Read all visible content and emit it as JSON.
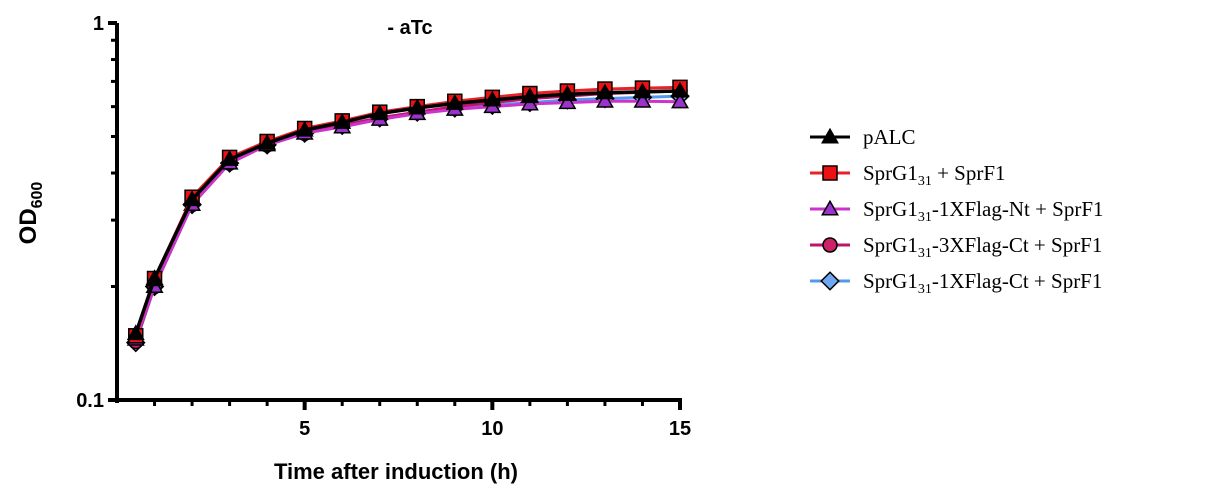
{
  "chart_data": {
    "type": "line",
    "title": "- aTc",
    "xlabel": "Time after induction (h)",
    "ylabel": "OD",
    "ylabel_sub": "600",
    "yscale": "log",
    "xlim": [
      0,
      15
    ],
    "ylim": [
      0.1,
      1
    ],
    "x_ticks": [
      5,
      10,
      15
    ],
    "x_tick_labels": [
      "5",
      "10",
      "15"
    ],
    "y_ticks": [
      0.1,
      1
    ],
    "y_tick_labels": [
      "0.1",
      "1"
    ],
    "grid": false,
    "legend_position": "right",
    "x": [
      0.5,
      1,
      2,
      3,
      4,
      5,
      6,
      7,
      8,
      9,
      10,
      11,
      12,
      13,
      14,
      15
    ],
    "series": [
      {
        "name": "SprG1",
        "name_sub": "31",
        "name_rest": "-1XFlag-Ct + SprF1",
        "color": "#5599ee",
        "fill": "#6fa8f0",
        "marker": "diamond",
        "values": [
          0.142,
          0.2,
          0.33,
          0.425,
          0.475,
          0.51,
          0.535,
          0.56,
          0.58,
          0.595,
          0.605,
          0.615,
          0.625,
          0.63,
          0.635,
          0.64
        ]
      },
      {
        "name": "SprG1",
        "name_sub": "31",
        "name_rest": "-3XFlag-Ct + SprF1",
        "color": "#c0136b",
        "fill": "#cc2266",
        "marker": "circle",
        "values": [
          0.143,
          0.2,
          0.33,
          0.425,
          0.475,
          0.51,
          0.535,
          0.56,
          0.58,
          0.6,
          0.615,
          0.63,
          0.64,
          0.65,
          0.655,
          0.66
        ]
      },
      {
        "name": "SprG1",
        "name_sub": "31",
        "name_rest": "-1XFlag-Nt + SprF1",
        "color": "#cc33cc",
        "fill": "#9933cc",
        "marker": "triangle",
        "values": [
          0.145,
          0.2,
          0.33,
          0.425,
          0.475,
          0.51,
          0.53,
          0.555,
          0.575,
          0.59,
          0.6,
          0.61,
          0.615,
          0.62,
          0.62,
          0.618
        ]
      },
      {
        "name": "SprG1",
        "name_sub": "31",
        "name_rest": " + SprF1",
        "color": "#e8222a",
        "fill": "#ee1111",
        "marker": "square",
        "values": [
          0.148,
          0.21,
          0.345,
          0.44,
          0.485,
          0.525,
          0.55,
          0.58,
          0.6,
          0.62,
          0.635,
          0.65,
          0.66,
          0.668,
          0.672,
          0.675
        ]
      },
      {
        "name": "pALC",
        "name_sub": "",
        "name_rest": "",
        "color": "#000000",
        "fill": "#000000",
        "marker": "triangle",
        "values": [
          0.15,
          0.21,
          0.34,
          0.435,
          0.48,
          0.52,
          0.545,
          0.575,
          0.595,
          0.612,
          0.625,
          0.638,
          0.647,
          0.653,
          0.657,
          0.66
        ]
      }
    ],
    "legend_order": [
      4,
      3,
      2,
      1,
      0
    ]
  }
}
